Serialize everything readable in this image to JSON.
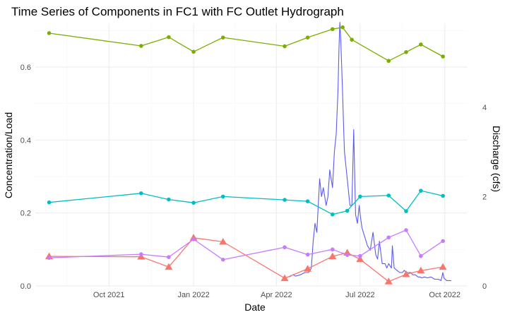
{
  "chart_data": {
    "type": "line",
    "title": "Time Series of Components in FC1 with FC Outlet Hydrograph",
    "xlabel": "Date",
    "ylabel": "Concentration/Load",
    "y2label": "Discharge (cfs)",
    "x_ticks": [
      "Oct 2021",
      "Jan 2022",
      "Apr 2022",
      "Jul 2022",
      "Oct 2022"
    ],
    "y_ticks": [
      "0.0",
      "0.2",
      "0.4",
      "0.6"
    ],
    "y2_ticks": [
      "0",
      "2",
      "4"
    ],
    "ylim": [
      0,
      0.72
    ],
    "y2lim": [
      0,
      5.88
    ],
    "xlim": [
      "2021-07-13",
      "2022-10-25"
    ],
    "grid": true,
    "legend": "none",
    "series": [
      {
        "color": "#7cae00",
        "marker": "circle",
        "axis": "left",
        "x": [
          "2021-07-28",
          "2021-11-05",
          "2021-12-05",
          "2022-01-01",
          "2022-02-02",
          "2022-04-10",
          "2022-05-05",
          "2022-06-01",
          "2022-06-12",
          "2022-06-22",
          "2022-08-01",
          "2022-08-20",
          "2022-09-05",
          "2022-09-29"
        ],
        "y": [
          0.693,
          0.658,
          0.682,
          0.642,
          0.681,
          0.657,
          0.681,
          0.704,
          0.709,
          0.675,
          0.617,
          0.641,
          0.662,
          0.629
        ]
      },
      {
        "color": "#00bfc4",
        "marker": "circle",
        "axis": "left",
        "x": [
          "2021-07-28",
          "2021-11-05",
          "2021-12-05",
          "2022-01-01",
          "2022-02-02",
          "2022-04-10",
          "2022-05-05",
          "2022-06-01",
          "2022-06-17",
          "2022-07-01",
          "2022-08-01",
          "2022-08-20",
          "2022-09-05",
          "2022-09-29"
        ],
        "y": [
          0.229,
          0.254,
          0.237,
          0.228,
          0.245,
          0.236,
          0.232,
          0.196,
          0.206,
          0.245,
          0.248,
          0.205,
          0.261,
          0.247
        ]
      },
      {
        "color": "#c77cff",
        "marker": "circle",
        "axis": "left",
        "x": [
          "2021-07-28",
          "2021-11-05",
          "2021-12-05",
          "2022-01-01",
          "2022-02-02",
          "2022-04-10",
          "2022-05-05",
          "2022-06-01",
          "2022-06-17",
          "2022-07-01",
          "2022-08-01",
          "2022-08-20",
          "2022-09-05",
          "2022-09-29"
        ],
        "y": [
          0.077,
          0.087,
          0.079,
          0.128,
          0.072,
          0.106,
          0.086,
          0.1,
          0.085,
          0.082,
          0.133,
          0.153,
          0.082,
          0.123
        ]
      },
      {
        "color": "#f8766d",
        "marker": "triangle",
        "axis": "left",
        "x": [
          "2021-07-28",
          "2021-11-05",
          "2021-12-05",
          "2022-01-01",
          "2022-02-02",
          "2022-04-10",
          "2022-05-05",
          "2022-06-01",
          "2022-06-17",
          "2022-07-01",
          "2022-08-01",
          "2022-08-20",
          "2022-09-05",
          "2022-09-29"
        ],
        "y": [
          0.081,
          0.08,
          0.052,
          0.132,
          0.121,
          0.021,
          0.047,
          0.081,
          0.091,
          0.073,
          0.012,
          0.032,
          0.042,
          0.052
        ]
      },
      {
        "color": "#5b5bf0",
        "marker": "none",
        "axis": "right",
        "x": [
          "2022-04-15",
          "2022-04-19",
          "2022-04-22",
          "2022-04-27",
          "2022-05-02",
          "2022-05-06",
          "2022-05-09",
          "2022-05-11",
          "2022-05-13",
          "2022-05-15",
          "2022-05-18",
          "2022-05-20",
          "2022-05-22",
          "2022-05-25",
          "2022-05-27",
          "2022-05-29",
          "2022-06-01",
          "2022-06-03",
          "2022-06-05",
          "2022-06-06",
          "2022-06-07",
          "2022-06-08",
          "2022-06-09",
          "2022-06-10",
          "2022-06-11",
          "2022-06-12",
          "2022-06-13",
          "2022-06-14",
          "2022-06-16",
          "2022-06-18",
          "2022-06-20",
          "2022-06-22",
          "2022-06-24",
          "2022-06-26",
          "2022-06-28",
          "2022-06-30",
          "2022-07-01",
          "2022-07-03",
          "2022-07-06",
          "2022-07-09",
          "2022-07-12",
          "2022-07-15",
          "2022-07-18",
          "2022-07-20",
          "2022-07-22",
          "2022-07-25",
          "2022-07-28",
          "2022-07-30",
          "2022-08-01",
          "2022-08-04",
          "2022-08-05",
          "2022-08-07",
          "2022-08-10",
          "2022-08-13",
          "2022-08-16",
          "2022-08-18",
          "2022-08-20",
          "2022-08-22",
          "2022-08-25",
          "2022-08-27",
          "2022-08-30",
          "2022-09-02",
          "2022-09-04",
          "2022-09-06",
          "2022-09-09",
          "2022-09-12",
          "2022-09-16",
          "2022-09-20",
          "2022-09-24",
          "2022-09-27",
          "2022-09-29",
          "2022-09-30",
          "2022-10-03",
          "2022-10-08"
        ],
        "y": [
          0.2,
          0.25,
          0.22,
          0.25,
          0.3,
          0.3,
          0.4,
          1.0,
          1.4,
          1.2,
          2.4,
          2.0,
          2.2,
          1.8,
          2.0,
          2.6,
          2.2,
          3.0,
          3.4,
          3.9,
          4.4,
          5.3,
          5.9,
          5.5,
          4.9,
          4.3,
          3.6,
          3.0,
          2.6,
          2.2,
          1.8,
          1.8,
          3.5,
          1.6,
          1.4,
          1.8,
          1.6,
          1.3,
          1.1,
          0.9,
          0.8,
          1.2,
          0.7,
          0.6,
          1.0,
          0.5,
          0.5,
          0.4,
          0.5,
          0.4,
          0.9,
          0.4,
          0.35,
          0.3,
          0.3,
          0.35,
          0.3,
          0.3,
          0.3,
          0.25,
          0.25,
          0.2,
          0.2,
          0.18,
          0.2,
          0.18,
          0.2,
          0.15,
          0.15,
          0.12,
          0.3,
          0.18,
          0.12,
          0.12
        ]
      }
    ]
  }
}
